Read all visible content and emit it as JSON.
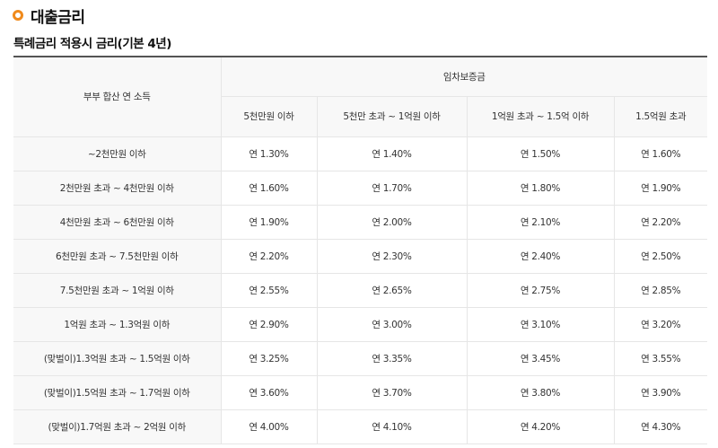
{
  "section": {
    "icon": "orange-ring-bullet",
    "accent_color": "#f08a1c",
    "title": "대출금리"
  },
  "subtitle": "특례금리 적용시 금리(기본 4년)",
  "table": {
    "row_header_label": "부부 합산 연 소득",
    "group_header_label": "임차보증금",
    "columns": [
      "5천만원 이하",
      "5천만 초과 ~ 1억원 이하",
      "1억원 초과 ~ 1.5억 이하",
      "1.5억원 초과"
    ],
    "rows": [
      {
        "income": "~2천만원 이하",
        "rates": [
          "연 1.30%",
          "연 1.40%",
          "연 1.50%",
          "연 1.60%"
        ]
      },
      {
        "income": "2천만원 초과 ~ 4천만원 이하",
        "rates": [
          "연 1.60%",
          "연 1.70%",
          "연 1.80%",
          "연 1.90%"
        ]
      },
      {
        "income": "4천만원 초과 ~ 6천만원 이하",
        "rates": [
          "연 1.90%",
          "연 2.00%",
          "연 2.10%",
          "연 2.20%"
        ]
      },
      {
        "income": "6천만원 초과 ~ 7.5천만원 이하",
        "rates": [
          "연 2.20%",
          "연 2.30%",
          "연 2.40%",
          "연 2.50%"
        ]
      },
      {
        "income": "7.5천만원 초과 ~ 1억원 이하",
        "rates": [
          "연 2.55%",
          "연 2.65%",
          "연 2.75%",
          "연 2.85%"
        ]
      },
      {
        "income": "1억원 초과 ~ 1.3억원 이하",
        "rates": [
          "연 2.90%",
          "연 3.00%",
          "연 3.10%",
          "연 3.20%"
        ]
      },
      {
        "income": "(맞벌이)1.3억원 초과 ~ 1.5억원 이하",
        "rates": [
          "연 3.25%",
          "연 3.35%",
          "연 3.45%",
          "연 3.55%"
        ]
      },
      {
        "income": "(맞벌이)1.5억원 초과 ~ 1.7억원 이하",
        "rates": [
          "연 3.60%",
          "연 3.70%",
          "연 3.80%",
          "연 3.90%"
        ]
      },
      {
        "income": "(맞벌이)1.7억원 초과 ~ 2억원 이하",
        "rates": [
          "연 4.00%",
          "연 4.10%",
          "연 4.20%",
          "연 4.30%"
        ]
      }
    ]
  }
}
